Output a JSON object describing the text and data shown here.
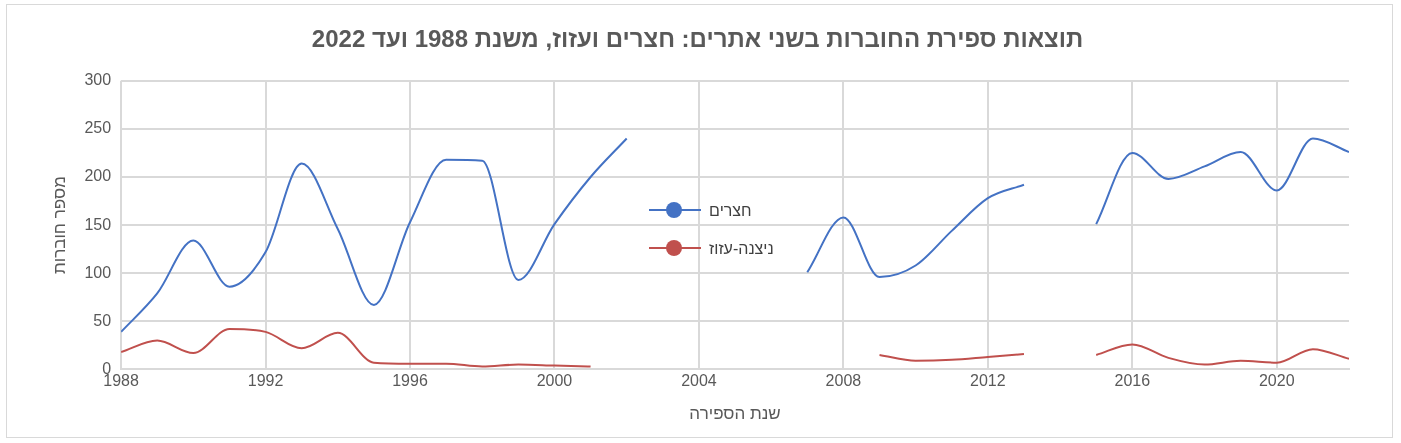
{
  "chart_data": {
    "type": "line",
    "title": "תוצאות ספירת החוברות בשני אתרים: חצרים ועזוז, משנת 1988 ועד 2022",
    "xlabel": "שנת הספירה",
    "ylabel": "מספר חוברות",
    "x": [
      1988,
      1989,
      1990,
      1991,
      1992,
      1993,
      1994,
      1995,
      1996,
      1997,
      1998,
      1999,
      2000,
      2001,
      2002,
      2003,
      2004,
      2005,
      2006,
      2007,
      2008,
      2009,
      2010,
      2011,
      2012,
      2013,
      2014,
      2015,
      2016,
      2017,
      2018,
      2019,
      2020,
      2021,
      2022
    ],
    "series": [
      {
        "name": "חצרים",
        "color": "#4472c4",
        "values": [
          39,
          79,
          134,
          86,
          122,
          214,
          146,
          67,
          153,
          218,
          217,
          93,
          151,
          200,
          240,
          null,
          null,
          null,
          null,
          101,
          158,
          96,
          108,
          144,
          178,
          192,
          null,
          151,
          225,
          198,
          211,
          226,
          186,
          240,
          226
        ]
      },
      {
        "name": "ניצנה-עזוז",
        "color": "#c0504d",
        "values": [
          18,
          30,
          17,
          42,
          39,
          22,
          38,
          7,
          6,
          6,
          3,
          5,
          4,
          3,
          null,
          null,
          null,
          null,
          null,
          null,
          null,
          15,
          9,
          10,
          13,
          16,
          null,
          15,
          26,
          12,
          5,
          9,
          7,
          21,
          11
        ]
      }
    ],
    "xlim": [
      1988,
      2022
    ],
    "xticks": [
      1988,
      1992,
      1996,
      2000,
      2004,
      2008,
      2012,
      2016,
      2020
    ],
    "ylim": [
      0,
      300
    ],
    "yticks": [
      0,
      50,
      100,
      150,
      200,
      250,
      300
    ],
    "grid": true,
    "legend": "center",
    "marker": "none",
    "line_style": "solid"
  }
}
